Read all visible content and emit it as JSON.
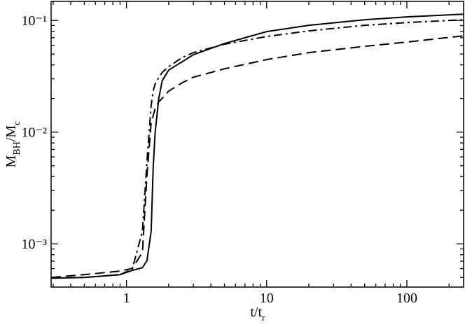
{
  "chart_data": {
    "type": "line",
    "x_label": [
      {
        "text": "t/t"
      },
      {
        "text": "r",
        "sub": true
      }
    ],
    "y_label": [
      {
        "text": "M"
      },
      {
        "text": "BH",
        "sub": true
      },
      {
        "text": "/M"
      },
      {
        "text": "c",
        "sub": true
      }
    ],
    "x": [
      0.29,
      0.5,
      0.9,
      1.1,
      1.3,
      1.4,
      1.5,
      1.55,
      1.6,
      1.7,
      1.8,
      2,
      2.5,
      3,
      5,
      10,
      20,
      50,
      100,
      254
    ],
    "series": [
      {
        "color": "#000000",
        "dash": "solid",
        "values": [
          0.000493,
          0.0005,
          0.00053,
          0.000578,
          0.000612,
          0.000708,
          0.0013,
          0.00475,
          0.0098,
          0.0201,
          0.0289,
          0.0359,
          0.0427,
          0.0493,
          0.0621,
          0.0794,
          0.0904,
          0.1014,
          0.1075,
          0.1138
        ]
      },
      {
        "color": "#000000",
        "dash": "dashdot",
        "values": [
          0.000493,
          0.0005,
          0.00053,
          0.000595,
          0.0013,
          0.0055,
          0.0174,
          0.0233,
          0.0269,
          0.031,
          0.0343,
          0.0386,
          0.0466,
          0.0515,
          0.0612,
          0.0718,
          0.0806,
          0.0904,
          0.0957,
          0.1014
        ]
      },
      {
        "color": "#000000",
        "dash": "dashed",
        "values": [
          0.0005,
          0.00053,
          0.00057,
          0.000603,
          0.00084,
          0.00411,
          0.0122,
          0.014,
          0.0162,
          0.0187,
          0.0201,
          0.0233,
          0.0277,
          0.031,
          0.0369,
          0.0446,
          0.0515,
          0.0586,
          0.064,
          0.0728
        ]
      }
    ],
    "xscale": "log",
    "yscale": "log",
    "xlim": [
      0.29,
      254
    ],
    "ylim": [
      0.00041,
      0.148
    ],
    "xticks": [
      1,
      10,
      100
    ],
    "xminorticks": [
      0.3,
      0.4,
      0.5,
      0.6,
      0.7,
      0.8,
      0.9,
      2,
      3,
      4,
      5,
      6,
      7,
      8,
      9,
      20,
      30,
      40,
      50,
      60,
      70,
      80,
      90,
      200
    ],
    "yticks": [
      {
        "value": 0.001,
        "label": "10⁻³"
      },
      {
        "value": 0.01,
        "label": "10⁻²"
      },
      {
        "value": 0.1,
        "label": "10⁻¹"
      }
    ],
    "yminorticks": [
      0.0005,
      0.0006,
      0.0007,
      0.0008,
      0.0009,
      0.002,
      0.003,
      0.004,
      0.005,
      0.006,
      0.007,
      0.008,
      0.009,
      0.02,
      0.03,
      0.04,
      0.05,
      0.06,
      0.07,
      0.08,
      0.09
    ],
    "grid": false
  }
}
